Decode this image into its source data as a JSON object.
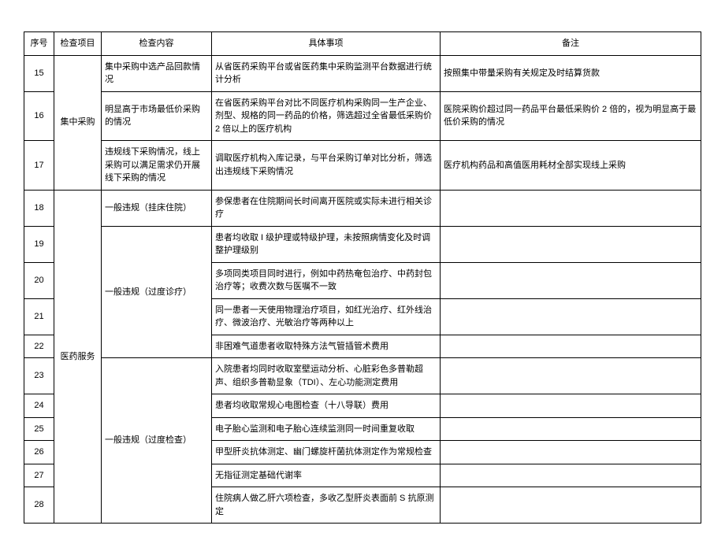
{
  "headers": {
    "seq": "序号",
    "project": "检查项目",
    "content": "检查内容",
    "detail": "具体事项",
    "remark": "备注"
  },
  "rows": [
    {
      "seq": "15",
      "content": "集中采购中选产品回款情况",
      "detail": "从省医药采购平台或省医药集中采购监测平台数据进行统计分析",
      "remark": "按照集中带量采购有关规定及时结算货款"
    },
    {
      "seq": "16",
      "content": "明显高于市场最低价采购的情况",
      "detail": "在省医药采购平台对比不同医疗机构采购同一生产企业、剂型、规格的同一药品的价格，筛选超过全省最低采购价 2 倍以上的医疗机构",
      "remark": "医院采购价超过同一药品平台最低采购价 2 倍的，视为明显高于最低价采购的情况"
    },
    {
      "seq": "17",
      "content": "违规线下采购情况，线上采购可以满足需求仍开展线下采购的情况",
      "detail": "调取医疗机构入库记录，与平台采购订单对比分析，筛选出违规线下采购情况",
      "remark": "医疗机构药品和高值医用耗材全部实现线上采购"
    },
    {
      "seq": "18",
      "content": "一般违规（挂床住院）",
      "detail": "参保患者在住院期间长时间离开医院或实际未进行相关诊疗",
      "remark": ""
    },
    {
      "seq": "19",
      "detail": "患者均收取 I 级护理或特级护理，未按照病情变化及时调整护理级别",
      "remark": ""
    },
    {
      "seq": "20",
      "detail": "多项同类项目同时进行，例如中药热奄包治疗、中药封包治疗等；收费次数与医嘱不一致",
      "remark": ""
    },
    {
      "seq": "21",
      "detail": "同一患者一天使用物理治疗项目，如红光治疗、红外线治疗、微波治疗、光敏治疗等两种以上",
      "remark": ""
    },
    {
      "seq": "22",
      "detail": "非困难气道患者收取特殊方法气管插管术费用",
      "remark": ""
    },
    {
      "seq": "23",
      "detail": "入院患者均同时收取室壁运动分析、心脏彩色多普勒超声、组织多普勒显象（TDI）、左心功能测定费用",
      "remark": ""
    },
    {
      "seq": "24",
      "detail": "患者均收取常规心电图检查（十八导联）费用",
      "remark": ""
    },
    {
      "seq": "25",
      "detail": "电子胎心监测和电子胎心连续监测同一时间重复收取",
      "remark": ""
    },
    {
      "seq": "26",
      "detail": "甲型肝炎抗体测定、幽门螺旋杆菌抗体测定作为常规检查",
      "remark": ""
    },
    {
      "seq": "27",
      "detail": "无指征测定基础代谢率",
      "remark": ""
    },
    {
      "seq": "28",
      "detail": "住院病人做乙肝六项检查，多收乙型肝炎表面前 S 抗原测定",
      "remark": ""
    }
  ],
  "mergedLabels": {
    "project1": "集中采购",
    "project2": "医药服务",
    "content_diag": "一般违规（过度诊疗）",
    "content_check": "一般违规（过度检查）"
  }
}
